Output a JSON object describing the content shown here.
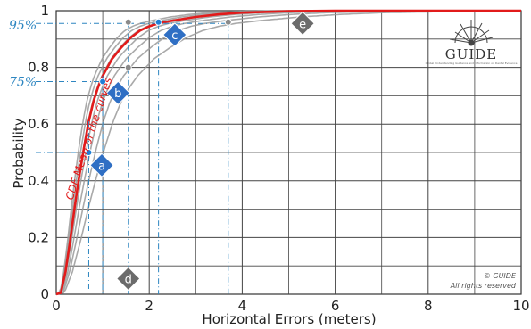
{
  "chart_data": {
    "type": "line",
    "title": "",
    "xlabel": "Horizontal Errors (meters)",
    "ylabel": "Probability",
    "xlim": [
      0,
      10
    ],
    "ylim": [
      0,
      1
    ],
    "xticks": [
      "0",
      "2",
      "4",
      "6",
      "8",
      "10"
    ],
    "yticks": [
      "0",
      "0.2",
      "0.4",
      "0.6",
      "0.8",
      "1"
    ],
    "grid": true,
    "mean_curve_label": "CDF Mean of the curves",
    "mean_curve_color": "#e21b1b",
    "sample_curve_color": "#9a9a9a",
    "gray_curve_scales": [
      0.82,
      0.9,
      0.98,
      1.1,
      1.25,
      1.45,
      1.75
    ],
    "mean_curve": {
      "x": [
        0,
        0.1,
        0.2,
        0.3,
        0.4,
        0.5,
        0.6,
        0.7,
        0.8,
        0.9,
        1.0,
        1.2,
        1.4,
        1.6,
        1.8,
        2.0,
        2.2,
        2.5,
        3.0,
        3.5,
        4.0,
        5.0,
        6.0,
        10.0
      ],
      "y": [
        0,
        0.005,
        0.08,
        0.19,
        0.31,
        0.42,
        0.52,
        0.61,
        0.68,
        0.73,
        0.77,
        0.83,
        0.87,
        0.905,
        0.93,
        0.945,
        0.955,
        0.965,
        0.978,
        0.987,
        0.993,
        0.998,
        1.0,
        1.0
      ]
    },
    "percent_labels": [
      {
        "text": "95%",
        "value": 0.95
      },
      {
        "text": "75%",
        "value": 0.75
      }
    ],
    "markers": [
      {
        "label": "a",
        "x": 0.7,
        "y": 0.5,
        "guide_to_x": 0,
        "guide_to_y": 0
      },
      {
        "label": "b",
        "x": 1.0,
        "y": 0.75,
        "guide_to_x": 0,
        "guide_to_y": 0
      },
      {
        "label": "c",
        "x": 2.2,
        "y": 0.96,
        "guide_to_x": 0,
        "guide_to_y": 0
      },
      {
        "label": "d",
        "x": 1.55,
        "y": 0.8,
        "guide_to_x": 0,
        "guide_to_y": 0
      },
      {
        "label": "e",
        "x": 3.7,
        "y": 0.96,
        "guide_to_x": 0,
        "guide_to_y": 0
      }
    ],
    "gray_points": [
      {
        "x": 1.55,
        "y": 0.96
      },
      {
        "x": 1.55,
        "y": 0.8
      },
      {
        "x": 3.7,
        "y": 0.96
      }
    ]
  },
  "logo": {
    "title": "GUIDE",
    "subtitle": "Global Understanding Guidance and Information on Dental Evidence"
  },
  "copyright": {
    "line1": "© GUIDE",
    "line2": "All rights reserved"
  }
}
